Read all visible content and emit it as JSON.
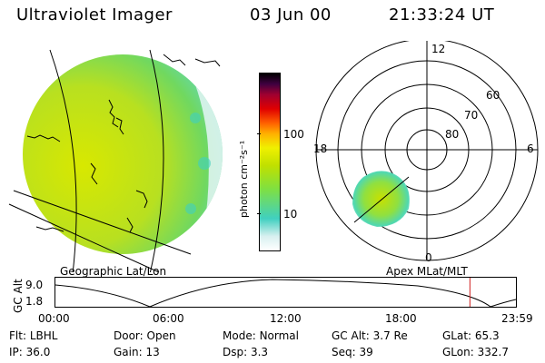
{
  "header": {
    "title": "Ultraviolet Imager",
    "date": "03 Jun 00",
    "time": "21:33:24 UT"
  },
  "colorbar": {
    "unit_label": "photon cm⁻²s⁻¹",
    "ticks": [
      {
        "label": "100",
        "value": 100
      },
      {
        "label": "10",
        "value": 10
      }
    ],
    "colors": [
      "#ffffff",
      "#d8f0f0",
      "#40d0c0",
      "#80e040",
      "#c0e000",
      "#f0f000",
      "#ffb000",
      "#ff6000",
      "#e00000",
      "#a00030",
      "#400040",
      "#000000"
    ]
  },
  "left_panel": {
    "caption": "Geographic Lat/Lon"
  },
  "right_panel": {
    "caption": "Apex MLat/MLT",
    "mlt_labels": {
      "top": "12",
      "right": "6",
      "bottom": "0",
      "left": "18"
    },
    "lat_labels": [
      "60",
      "70",
      "80"
    ]
  },
  "altitude_plot": {
    "ylabel": "GC Alt",
    "yticks": [
      "9.0",
      "1.8"
    ],
    "xticks": [
      "00:00",
      "06:00",
      "12:00",
      "18:00",
      "23:59"
    ],
    "marker_time_hours": 21.56,
    "marker_color": "#d02020"
  },
  "footer": [
    {
      "key": "Flt:",
      "value": "LBHL"
    },
    {
      "key": "Door:",
      "value": "Open"
    },
    {
      "key": "Mode:",
      "value": "Normal"
    },
    {
      "key": "GC Alt:",
      "value": "3.7 Re"
    },
    {
      "key": "GLat:",
      "value": "65.3"
    },
    {
      "key": "IP:",
      "value": "36.0"
    },
    {
      "key": "Gain:",
      "value": "13"
    },
    {
      "key": "Dsp:",
      "value": "3.3"
    },
    {
      "key": "Seq:",
      "value": "39"
    },
    {
      "key": "GLon:",
      "value": "332.7"
    }
  ]
}
